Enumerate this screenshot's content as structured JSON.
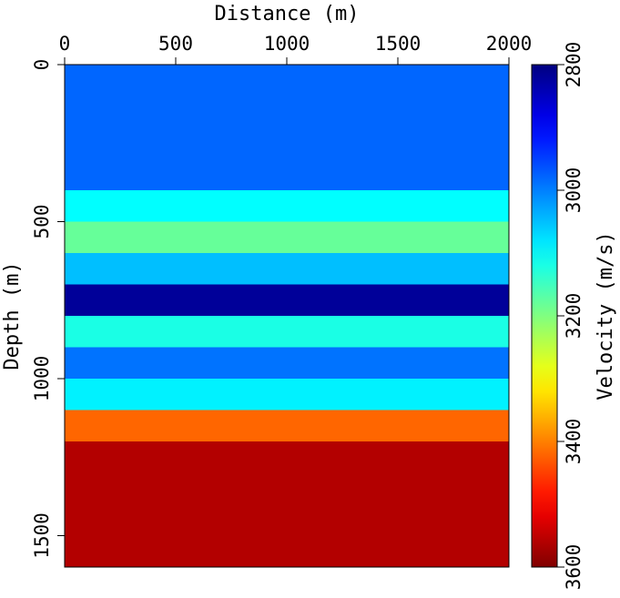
{
  "chart_data": {
    "type": "heatmap",
    "xlabel": "Distance (m)",
    "ylabel": "Depth (m)",
    "xlim": [
      0,
      2000
    ],
    "ylim": [
      0,
      1600
    ],
    "x_ticks": [
      "0",
      "500",
      "1000",
      "1500",
      "2000"
    ],
    "y_ticks": [
      "0",
      "500",
      "1000",
      "1500"
    ],
    "x_tick_values": [
      0,
      500,
      1000,
      1500,
      2000
    ],
    "y_tick_values": [
      0,
      500,
      1000,
      1500
    ],
    "x_axis_position": "top",
    "y_axis_inverted": true,
    "colormap": "jet",
    "layers": [
      {
        "top": 0,
        "bottom": 400,
        "velocity": 2980
      },
      {
        "top": 400,
        "bottom": 500,
        "velocity": 3100
      },
      {
        "top": 500,
        "bottom": 600,
        "velocity": 3180
      },
      {
        "top": 600,
        "bottom": 700,
        "velocity": 3050
      },
      {
        "top": 700,
        "bottom": 800,
        "velocity": 2820
      },
      {
        "top": 800,
        "bottom": 900,
        "velocity": 3120
      },
      {
        "top": 900,
        "bottom": 1000,
        "velocity": 2990
      },
      {
        "top": 1000,
        "bottom": 1100,
        "velocity": 3090
      },
      {
        "top": 1100,
        "bottom": 1200,
        "velocity": 3420
      },
      {
        "top": 1200,
        "bottom": 1600,
        "velocity": 3560
      }
    ],
    "colorbar": {
      "label": "Velocity (m/s)",
      "min": 2800,
      "max": 3600,
      "ticks": [
        "2800",
        "3000",
        "3200",
        "3400",
        "3600"
      ],
      "tick_values": [
        2800,
        3000,
        3200,
        3400,
        3600
      ],
      "orientation": "vertical",
      "placement": "right",
      "reversed": true
    },
    "grid": false
  }
}
